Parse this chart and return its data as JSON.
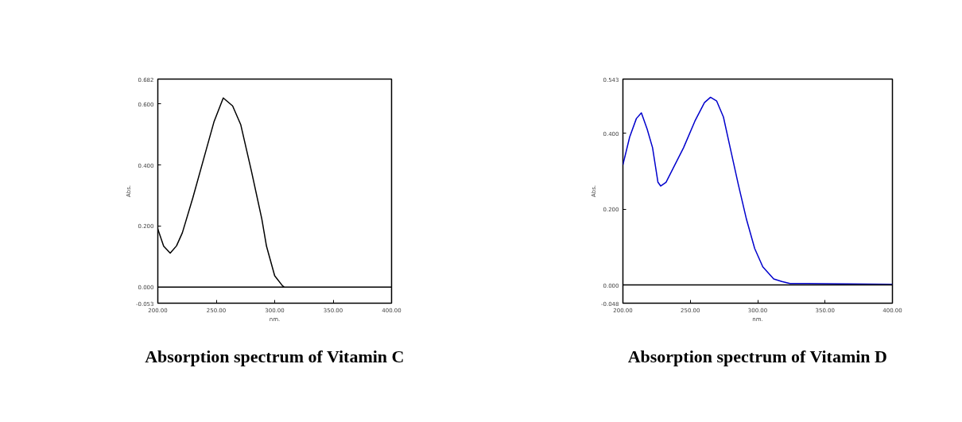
{
  "chart_data": [
    {
      "type": "line",
      "title": "Absorption spectrum of Vitamin C",
      "xlabel": "nm.",
      "ylabel": "Abs.",
      "grid": false,
      "xlim": [
        200,
        400
      ],
      "ylim": [
        -0.053,
        0.682
      ],
      "xticks": [
        {
          "value": 200,
          "label": "200.00"
        },
        {
          "value": 250,
          "label": "250.00"
        },
        {
          "value": 300,
          "label": "300.00"
        },
        {
          "value": 350,
          "label": "350.00"
        },
        {
          "value": 400,
          "label": "400.00"
        }
      ],
      "yticks": [
        {
          "value": -0.053,
          "label": "-0.053"
        },
        {
          "value": 0,
          "label": "0.000"
        },
        {
          "value": 0.2,
          "label": "0.200"
        },
        {
          "value": 0.4,
          "label": "0.400"
        },
        {
          "value": 0.6,
          "label": "0.600"
        },
        {
          "value": 0.682,
          "label": "0.682"
        }
      ],
      "ref_lines": [
        {
          "axis": "y",
          "value": 0,
          "color": "#000000"
        }
      ],
      "series": [
        {
          "color": "#000000",
          "x": [
            200,
            205,
            210.6,
            216,
            221,
            230,
            239,
            248,
            256,
            264,
            271,
            280,
            289,
            293,
            300,
            306.7,
            308
          ],
          "values": [
            0.19,
            0.134,
            0.111,
            0.135,
            0.178,
            0.293,
            0.417,
            0.541,
            0.62,
            0.594,
            0.532,
            0.382,
            0.223,
            0.134,
            0.037,
            0.004,
            0.0
          ]
        }
      ]
    },
    {
      "type": "line",
      "title": "Absorption spectrum of Vitamin D",
      "xlabel": "nm.",
      "ylabel": "Abs.",
      "grid": false,
      "xlim": [
        200,
        400
      ],
      "ylim": [
        -0.048,
        0.543
      ],
      "xticks": [
        {
          "value": 200,
          "label": "200.00"
        },
        {
          "value": 250,
          "label": "250.00"
        },
        {
          "value": 300,
          "label": "300.00"
        },
        {
          "value": 350,
          "label": "350.00"
        },
        {
          "value": 400,
          "label": "400.00"
        }
      ],
      "yticks": [
        {
          "value": -0.048,
          "label": "-0.048"
        },
        {
          "value": 0,
          "label": "0.000"
        },
        {
          "value": 0.2,
          "label": "0.200"
        },
        {
          "value": 0.4,
          "label": "0.400"
        },
        {
          "value": 0.543,
          "label": "0.543"
        }
      ],
      "ref_lines": [
        {
          "axis": "y",
          "value": 0,
          "color": "#000000"
        }
      ],
      "series": [
        {
          "color": "#0000cc",
          "x": [
            200,
            205,
            210,
            213.7,
            218,
            222,
            226,
            228,
            232,
            237,
            245,
            253.4,
            260.5,
            265,
            269.6,
            274.6,
            279.6,
            285.7,
            291.7,
            297.8,
            303.8,
            311.9,
            318,
            324,
            400
          ],
          "values": [
            0.317,
            0.39,
            0.439,
            0.454,
            0.411,
            0.362,
            0.271,
            0.261,
            0.271,
            0.306,
            0.362,
            0.432,
            0.481,
            0.495,
            0.485,
            0.443,
            0.362,
            0.264,
            0.173,
            0.096,
            0.048,
            0.016,
            0.009,
            0.004,
            0.002
          ]
        }
      ]
    }
  ]
}
